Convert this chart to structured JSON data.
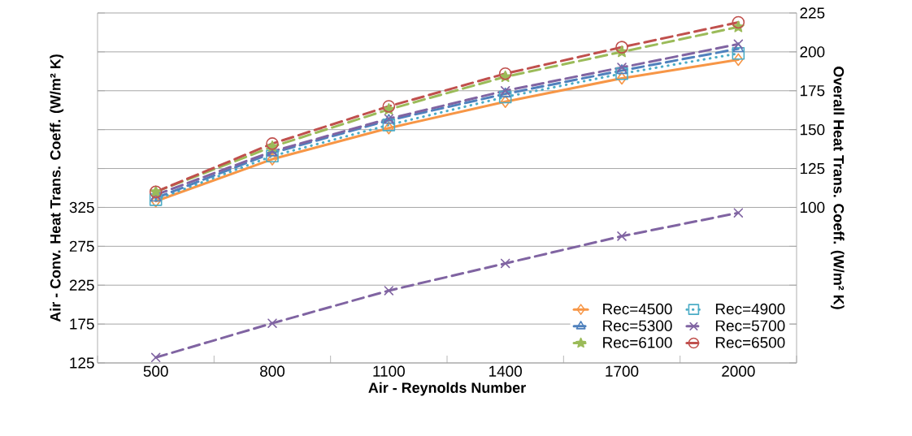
{
  "chart_data": {
    "type": "line",
    "xlabel": "Air - Reynolds Number",
    "ylabel": "Air - Conv. Heat Trans. Coeff. (W/m² K)",
    "y2label": "Overall Heat Trans. Coeff. (W/m² K)",
    "categories": [
      "500",
      "800",
      "1100",
      "1400",
      "1700",
      "2000"
    ],
    "ylim": [
      125,
      575
    ],
    "yticks": [
      125,
      175,
      225,
      275,
      325,
      {
        "value": 375,
        "label": null
      },
      {
        "value": 425,
        "label": null
      },
      {
        "value": 475,
        "label": null
      },
      {
        "value": 525,
        "label": null
      },
      {
        "value": 575,
        "label": null
      }
    ],
    "y2lim": [
      0,
      225
    ],
    "y2ticks": [
      {
        "value": 0,
        "label": null
      },
      {
        "value": 25,
        "label": null
      },
      {
        "value": 50,
        "label": null
      },
      {
        "value": 75,
        "label": null
      },
      100,
      125,
      150,
      175,
      200,
      225
    ],
    "grid": "y",
    "legend": "bottom right",
    "series": [
      {
        "color": "#8064a2",
        "values": [
          132,
          176,
          218,
          253,
          288,
          318
        ],
        "marker": "cross",
        "line_style": "dashed"
      },
      {
        "name": "Rec=4500",
        "color": "#f79646",
        "values": [
          104,
          131,
          151,
          168,
          183,
          195
        ],
        "marker": "diamond",
        "line_style": "solid",
        "axis": "y2"
      },
      {
        "name": "Rec=4900",
        "color": "#4bacc6",
        "values": [
          105,
          133,
          153,
          171,
          186,
          199
        ],
        "marker": "square",
        "line_style": "dotted",
        "axis": "y2"
      },
      {
        "name": "Rec=5300",
        "color": "#4f81bd",
        "values": [
          106,
          135,
          156,
          173,
          188,
          202
        ],
        "marker": "triangle",
        "line_style": "dashed",
        "axis": "y2"
      },
      {
        "name": "Rec=5700",
        "color": "#8064a2",
        "values": [
          108,
          136,
          157,
          175,
          190,
          205
        ],
        "marker": "cross",
        "line_style": "dashed",
        "axis": "y2"
      },
      {
        "name": "Rec=6100",
        "color": "#9bbb59",
        "values": [
          110,
          139,
          163,
          184,
          200,
          216
        ],
        "marker": "star",
        "line_style": "dashed",
        "axis": "y2"
      },
      {
        "name": "Rec=6500",
        "color": "#c0504d",
        "values": [
          110,
          141,
          165,
          186,
          203,
          219
        ],
        "marker": "circle",
        "line_style": "dashed",
        "axis": "y2"
      }
    ]
  }
}
